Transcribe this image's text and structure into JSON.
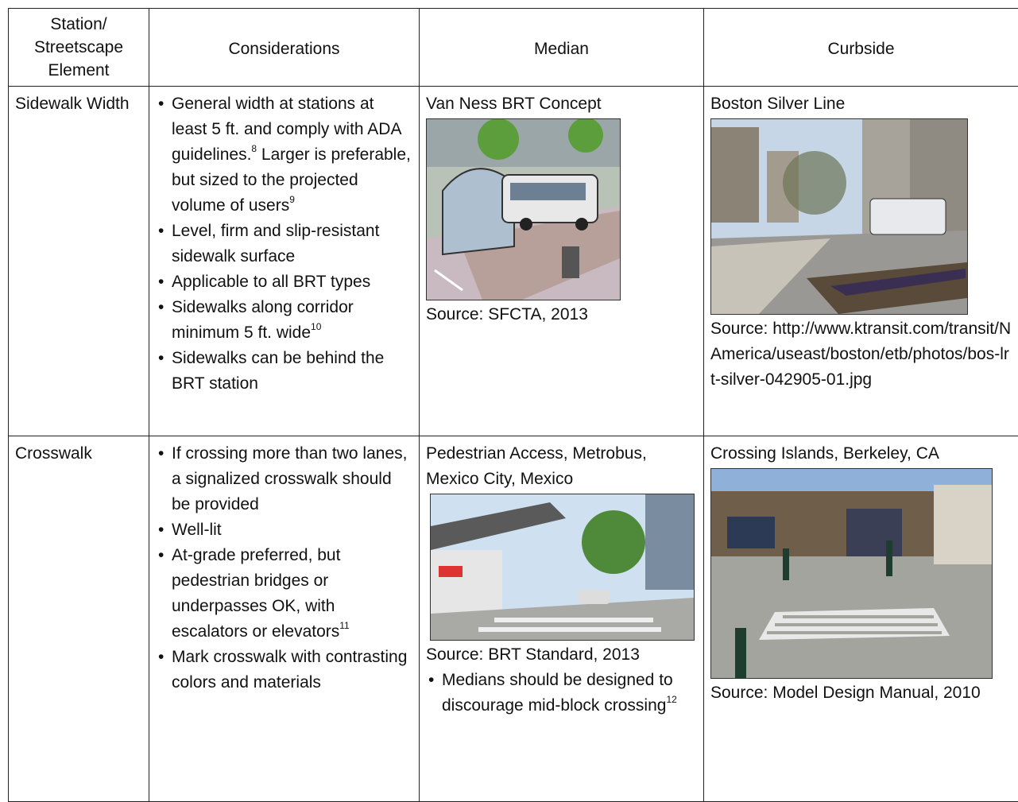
{
  "table": {
    "headers": [
      "Station/ Streetscape Element",
      "Considerations",
      "Median",
      "Curbside"
    ],
    "rows": [
      {
        "element": "Sidewalk Width",
        "considerations": [
          [
            {
              "t": "General width at stations at least 5 ft. and comply with ADA guidelines."
            },
            {
              "sup": "8"
            },
            {
              "t": " Larger is preferable, but sized to the projected volume of users"
            },
            {
              "sup": "9"
            }
          ],
          [
            {
              "t": "Level, firm and slip-resistant sidewalk surface"
            }
          ],
          [
            {
              "t": "Applicable to all BRT types"
            }
          ],
          [
            {
              "t": "Sidewalks along corridor minimum 5 ft. wide"
            },
            {
              "sup": "10"
            }
          ],
          [
            {
              "t": "Sidewalks can be  behind the BRT station"
            }
          ]
        ],
        "median": {
          "caption": "Van Ness BRT Concept",
          "source": "Source: SFCTA, 2013"
        },
        "curbside": {
          "caption": "Boston Silver Line",
          "source": "Source: http://www.ktransit.com/transit/NAmerica/useast/boston/etb/photos/bos-lrt-silver-042905-01.jpg"
        }
      },
      {
        "element": "Crosswalk",
        "considerations": [
          [
            {
              "t": "If crossing more than two lanes, a signalized crosswalk should be provided"
            }
          ],
          [
            {
              "t": "Well-lit"
            }
          ],
          [
            {
              "t": "At-grade preferred, but pedestrian bridges or underpasses OK, with escalators or elevators"
            },
            {
              "sup": "11"
            }
          ],
          [
            {
              "t": "Mark crosswalk with contrasting colors and materials"
            }
          ]
        ],
        "median": {
          "caption": "Pedestrian Access, Metrobus, Mexico City, Mexico",
          "source": "Source: BRT Standard, 2013",
          "notes": [
            [
              {
                "t": "Medians should be designed to discourage mid-block crossing"
              },
              {
                "sup": "12"
              }
            ]
          ]
        },
        "curbside": {
          "caption": "Crossing Islands, Berkeley, CA",
          "source": "Source: Model Design Manual, 2010"
        }
      }
    ]
  }
}
